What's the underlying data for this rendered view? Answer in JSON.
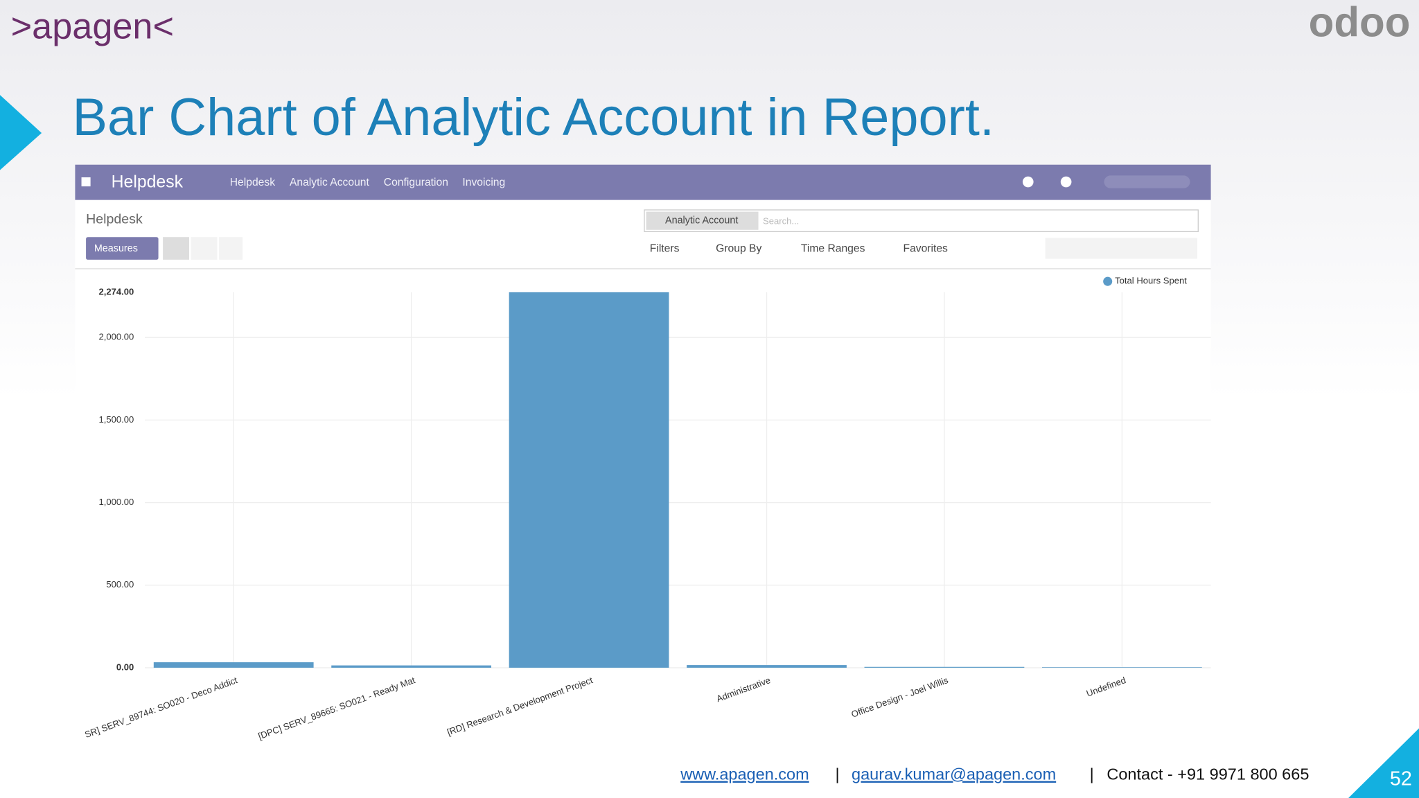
{
  "slide": {
    "logo": ">apagen<",
    "brand": "odoo",
    "title": "Bar Chart of Analytic Account in Report.",
    "page_number": "52",
    "footer": {
      "website": "www.apagen.com",
      "separator": "|",
      "email": "gaurav.kumar@apagen.com",
      "contact": "Contact - +91 9971 800 665"
    }
  },
  "app": {
    "app_name": "Helpdesk",
    "menu": [
      "Helpdesk",
      "Analytic Account",
      "Configuration",
      "Invoicing"
    ],
    "breadcrumb": "Helpdesk",
    "measures": "Measures",
    "facet": "Analytic Account",
    "search_placeholder": "Search...",
    "search_options": [
      "Filters",
      "Group By",
      "Time Ranges",
      "Favorites"
    ]
  },
  "chart_data": {
    "type": "bar",
    "categories": [
      "SR] SERV_89744: SO020 - Deco Addict",
      "[DPC] SERV_89665: SO021 - Ready Mat",
      "[RD] Research & Development Project",
      "Administrative",
      "Office Design - Joel Willis",
      "Undefined"
    ],
    "series": [
      {
        "name": "Total Hours Spent",
        "color": "#5b9bc8",
        "values": [
          33,
          14,
          2274,
          16,
          5,
          3
        ]
      }
    ],
    "ylim": [
      0,
      2274
    ],
    "yticks": [
      {
        "value": 0,
        "label": "0.00"
      },
      {
        "value": 500,
        "label": "500.00"
      },
      {
        "value": 1000,
        "label": "1,000.00"
      },
      {
        "value": 1500,
        "label": "1,500.00"
      },
      {
        "value": 2000,
        "label": "2,000.00"
      },
      {
        "value": 2274,
        "label": "2,274.00"
      }
    ],
    "grid": true,
    "legend": "top-right"
  }
}
